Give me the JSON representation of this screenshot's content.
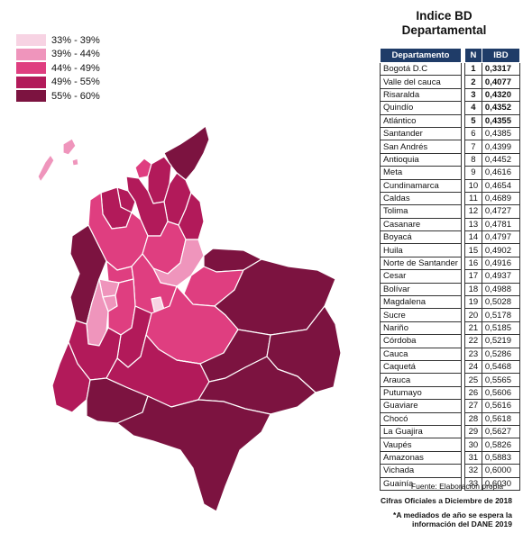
{
  "title_line1": "Indice BD",
  "title_line2": "Departamental",
  "legend": [
    {
      "label": "33% -   39%",
      "color": "#f7d3e3"
    },
    {
      "label": "39% -   44%",
      "color": "#ef95bc"
    },
    {
      "label": "44% -   49%",
      "color": "#df3e80"
    },
    {
      "label": "49% -   55%",
      "color": "#b21a5a"
    },
    {
      "label": "55% -   60%",
      "color": "#7c1340"
    }
  ],
  "table": {
    "headers": {
      "dept": "Departamento",
      "n": "N",
      "ibd": "IBD"
    },
    "rows": [
      {
        "dept": "Bogotá D.C",
        "n": "1",
        "ibd": "0,3317"
      },
      {
        "dept": "Valle del cauca",
        "n": "2",
        "ibd": "0,4077"
      },
      {
        "dept": "Risaralda",
        "n": "3",
        "ibd": "0,4320"
      },
      {
        "dept": "Quindío",
        "n": "4",
        "ibd": "0,4352"
      },
      {
        "dept": "Atlántico",
        "n": "5",
        "ibd": "0,4355"
      },
      {
        "dept": "Santander",
        "n": "6",
        "ibd": "0,4385"
      },
      {
        "dept": "San Andrés",
        "n": "7",
        "ibd": "0,4399"
      },
      {
        "dept": "Antioquia",
        "n": "8",
        "ibd": "0,4452"
      },
      {
        "dept": "Meta",
        "n": "9",
        "ibd": "0,4616"
      },
      {
        "dept": "Cundinamarca",
        "n": "10",
        "ibd": "0,4654"
      },
      {
        "dept": "Caldas",
        "n": "11",
        "ibd": "0,4689"
      },
      {
        "dept": "Tolima",
        "n": "12",
        "ibd": "0,4727"
      },
      {
        "dept": "Casanare",
        "n": "13",
        "ibd": "0,4781"
      },
      {
        "dept": "Boyacá",
        "n": "14",
        "ibd": "0,4797"
      },
      {
        "dept": "Huila",
        "n": "15",
        "ibd": "0,4902"
      },
      {
        "dept": "Norte de Santander",
        "n": "16",
        "ibd": "0,4916"
      },
      {
        "dept": "Cesar",
        "n": "17",
        "ibd": "0,4937"
      },
      {
        "dept": "Bolívar",
        "n": "18",
        "ibd": "0,4988"
      },
      {
        "dept": "Magdalena",
        "n": "19",
        "ibd": "0,5028"
      },
      {
        "dept": "Sucre",
        "n": "20",
        "ibd": "0,5178"
      },
      {
        "dept": "Nariño",
        "n": "21",
        "ibd": "0,5185"
      },
      {
        "dept": "Córdoba",
        "n": "22",
        "ibd": "0,5219"
      },
      {
        "dept": "Cauca",
        "n": "23",
        "ibd": "0,5286"
      },
      {
        "dept": "Caquetá",
        "n": "24",
        "ibd": "0,5468"
      },
      {
        "dept": "Arauca",
        "n": "25",
        "ibd": "0,5565"
      },
      {
        "dept": "Putumayo",
        "n": "26",
        "ibd": "0,5606"
      },
      {
        "dept": "Guaviare",
        "n": "27",
        "ibd": "0,5616"
      },
      {
        "dept": "Chocó",
        "n": "28",
        "ibd": "0,5618"
      },
      {
        "dept": "La Guajira",
        "n": "29",
        "ibd": "0,5627"
      },
      {
        "dept": "Vaupés",
        "n": "30",
        "ibd": "0,5826"
      },
      {
        "dept": "Amazonas",
        "n": "31",
        "ibd": "0,5883"
      },
      {
        "dept": "Vichada",
        "n": "32",
        "ibd": "0,6000"
      },
      {
        "dept": "Guainía",
        "n": "33",
        "ibd": "0,6030"
      }
    ]
  },
  "notes": {
    "source": "Fuente: Elaboración propia",
    "cifras": "Cifras Oficiales a Diciembre de 2018",
    "mid_line1": "*A mediados de año se espera la",
    "mid_line2": "información del DANE 2019"
  }
}
